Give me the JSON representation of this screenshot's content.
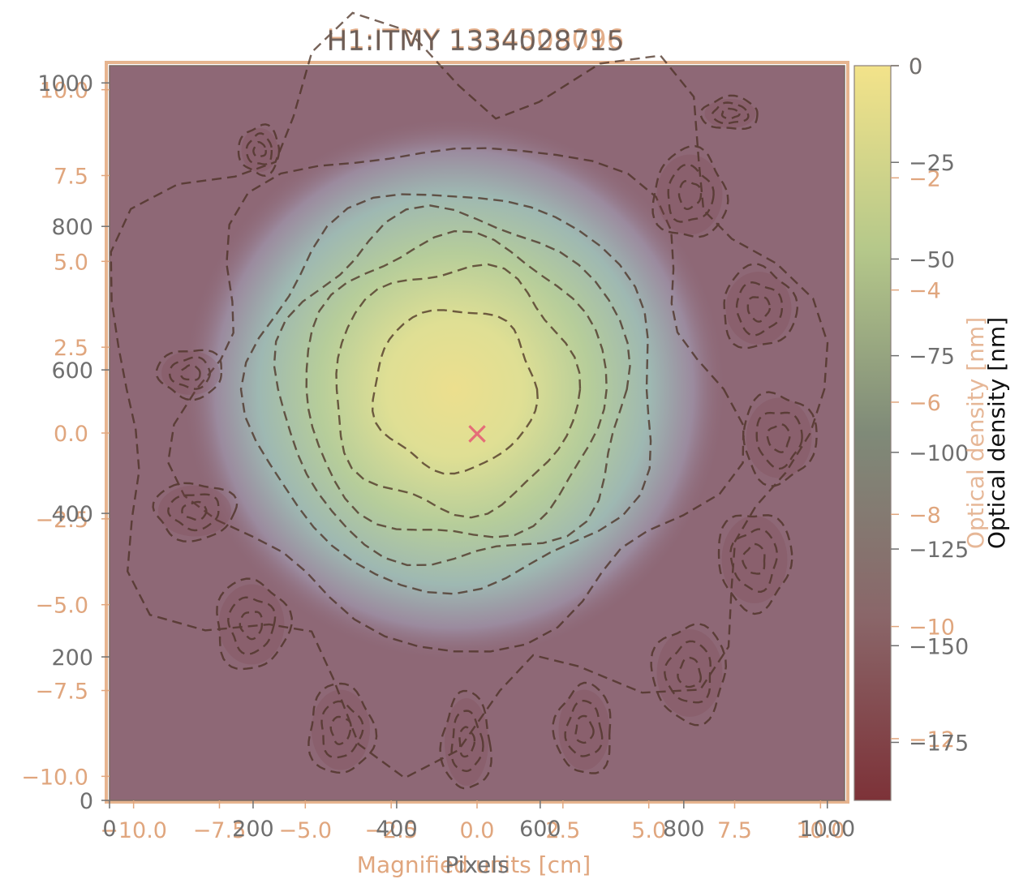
{
  "chart_data": [
    {
      "type": "heatmap",
      "layer": "front",
      "title": "H1:ITMY 1334028715",
      "xlabel": "Pixels",
      "ylabel": "",
      "x_ticks": [
        "0",
        "200",
        "400",
        "600",
        "800",
        "1000"
      ],
      "y_ticks": [
        "1000",
        "800",
        "600",
        "400",
        "200",
        "0"
      ],
      "xlim": [
        0,
        1024
      ],
      "ylim": [
        0,
        1024
      ],
      "colorbar": {
        "label": "Optical density [nm]",
        "ticks": [
          "0",
          "−25",
          "−50",
          "−75",
          "−100",
          "−125",
          "−150",
          "−175"
        ],
        "range": [
          -190,
          0
        ],
        "colormap": "viridis-like (dark red to yellow)"
      },
      "marker": {
        "label": "beam center",
        "symbol": "×",
        "x": 512,
        "y": 512
      }
    },
    {
      "type": "heatmap",
      "layer": "back",
      "title": "H1:ITMY 1334509096",
      "xlabel": "Magnified units [cm]",
      "ylabel": "",
      "x_ticks": [
        "−10.0",
        "−7.5",
        "−5.0",
        "−2.5",
        "0.0",
        "2.5",
        "5.0",
        "7.5",
        "10.0"
      ],
      "y_ticks": [
        "10.0",
        "7.5",
        "5.0",
        "2.5",
        "0.0",
        "−2.5",
        "−5.0",
        "−7.5",
        "−10.0"
      ],
      "xlim": [
        -10.7,
        10.7
      ],
      "ylim": [
        -10.7,
        10.7
      ],
      "colorbar": {
        "label": "Optical density [nm]",
        "ticks": [
          "0",
          "−2",
          "−4",
          "−6",
          "−8",
          "−10",
          "−12"
        ],
        "range": [
          -13.1,
          0
        ]
      }
    }
  ],
  "colors": {
    "front_text": "#6f6f6f",
    "back_text": "#e0a67e",
    "marker": "#e56d78",
    "contour": "#4a2f22"
  }
}
